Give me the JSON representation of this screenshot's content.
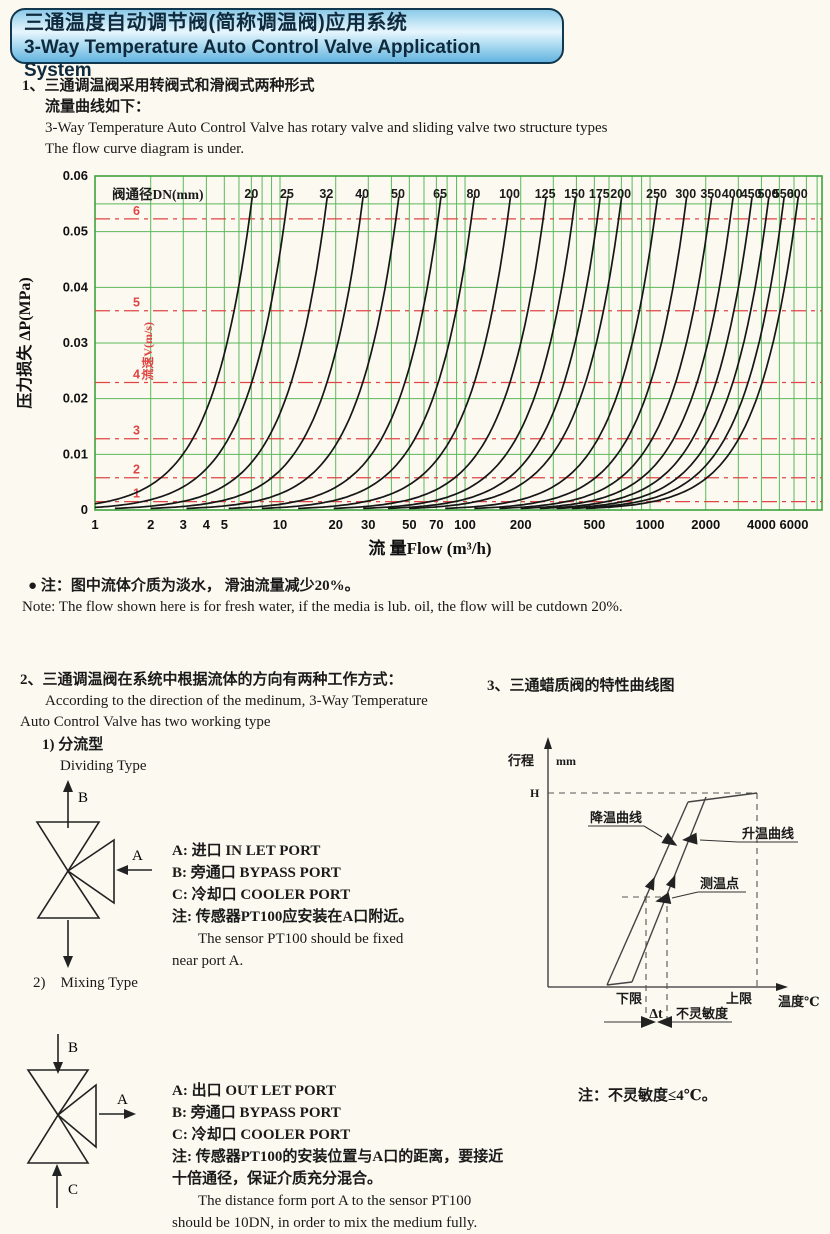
{
  "header": {
    "title_zh": "三通温度自动调节阀(简称调温阀)应用系统",
    "title_en": "3-Way Temperature Auto Control Valve Application System"
  },
  "section1": {
    "l1": "1、三通调温阀采用转阀式和滑阀式两种形式",
    "l2": "流量曲线如下：",
    "l3": "3-Way Temperature Auto Control Valve has rotary valve and sliding valve two structure types",
    "l4": "The flow curve diagram is under."
  },
  "chart_data": {
    "type": "line",
    "title": "阀通径DN(mm)",
    "xlabel": "流 量Flow (m³/h)",
    "ylabel": "压力损失 ΔP(MPa)",
    "velocity_axis_label": "流速V(m/s)",
    "x_scale": "log",
    "x_range": [
      1,
      8500
    ],
    "y_range": [
      0,
      0.06
    ],
    "y_ticks": [
      "0",
      "0.01",
      "0.02",
      "0.03",
      "0.04",
      "0.05",
      "0.06"
    ],
    "x_ticks": [
      1,
      2,
      3,
      4,
      5,
      10,
      20,
      30,
      50,
      70,
      100,
      200,
      500,
      1000,
      2000,
      4000,
      6000
    ],
    "curve_top_dp": 0.055,
    "series": [
      {
        "dn": "20",
        "q_top": 7.0
      },
      {
        "dn": "25",
        "q_top": 10.9
      },
      {
        "dn": "32",
        "q_top": 17.8
      },
      {
        "dn": "40",
        "q_top": 27.8
      },
      {
        "dn": "50",
        "q_top": 43.4
      },
      {
        "dn": "65",
        "q_top": 73.3
      },
      {
        "dn": "80",
        "q_top": 111
      },
      {
        "dn": "100",
        "q_top": 174
      },
      {
        "dn": "125",
        "q_top": 271
      },
      {
        "dn": "150",
        "q_top": 391
      },
      {
        "dn": "175",
        "q_top": 532
      },
      {
        "dn": "200",
        "q_top": 694
      },
      {
        "dn": "250",
        "q_top": 1085
      },
      {
        "dn": "300",
        "q_top": 1560
      },
      {
        "dn": "350",
        "q_top": 2130
      },
      {
        "dn": "400",
        "q_top": 2780
      },
      {
        "dn": "450",
        "q_top": 3520
      },
      {
        "dn": "500",
        "q_top": 4340
      },
      {
        "dn": "550",
        "q_top": 5250
      },
      {
        "dn": "600",
        "q_top": 6250
      }
    ],
    "velocity_lines": [
      {
        "v": "1",
        "dp": 0.0015
      },
      {
        "v": "2",
        "dp": 0.0058
      },
      {
        "v": "3",
        "dp": 0.0128
      },
      {
        "v": "4",
        "dp": 0.0229
      },
      {
        "v": "5",
        "dp": 0.0358
      },
      {
        "v": "6",
        "dp": 0.0523
      }
    ],
    "grid": true,
    "legend": "none",
    "colors": {
      "grid": "#5cb85c",
      "border": "#3da23d",
      "curve": "#161616",
      "velocity": "#e04545"
    }
  },
  "note1": {
    "bullet": "●",
    "zh": "注：图中流体介质为淡水， 滑油流量减少20%。",
    "en": "Note: The flow shown here is for fresh water, if the media is lub. oil, the flow will be cutdown 20%."
  },
  "section2": {
    "l1": "2、三通调温阀在系统中根据流体的方向有两种工作方式：",
    "l2": "According to the direction of the medinum, 3-Way Temperature",
    "l3": "Auto Control Valve has two working type",
    "sub1": "1) 分流型",
    "sub1_en": "Dividing Type",
    "sub2": "2)    Mixing Type"
  },
  "dividing": {
    "port_b": "B",
    "port_a": "A",
    "labels": [
      "A: 进口 IN LET PORT",
      "B: 旁通口 BYPASS PORT",
      "C: 冷却口 COOLER PORT",
      "注: 传感器PT100应安装在A口附近。",
      "The sensor PT100 should be fixed",
      "near port A."
    ]
  },
  "mixing": {
    "port_b": "B",
    "port_a": "A",
    "port_c": "C",
    "labels": [
      "A: 出口 OUT LET PORT",
      "B: 旁通口 BYPASS PORT",
      "C: 冷却口 COOLER PORT",
      "注: 传感器PT100的安装位置与A口的距离，要接近",
      "十倍通径，保证介质充分混合。",
      "The distance form port A to the sensor PT100",
      "should be 10DN, in order to mix the medium fully."
    ]
  },
  "section3": {
    "title": "3、三通蜡质阀的特性曲线图",
    "note": "注：不灵敏度≤4℃。"
  },
  "char_diagram": {
    "y_label": "行程",
    "y_unit": "mm",
    "h_label": "H",
    "cooling": "降温曲线",
    "heating": "升温曲线",
    "measure_point": "测温点",
    "lower": "下限",
    "upper": "上限",
    "x_label": "温度℃",
    "delta_t": "Δt",
    "insensitivity": "不灵敏度"
  }
}
